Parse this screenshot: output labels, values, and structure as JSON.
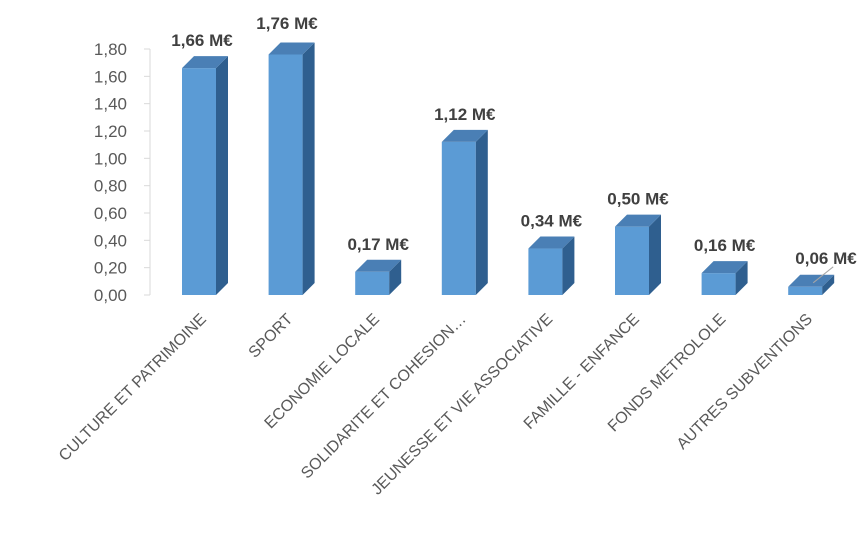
{
  "chart_data": {
    "type": "bar",
    "style": "3d-column",
    "categories": [
      "CULTURE ET PATRIMOINE",
      "SPORT",
      "ECONOMIE LOCALE",
      "SOLIDARITE ET COHESION…",
      "JEUNESSE ET VIE ASSOCIATIVE",
      "FAMILLE - ENFANCE",
      "FONDS METROLOLE",
      "AUTRES SUBVENTIONS"
    ],
    "values": [
      1.66,
      1.76,
      0.17,
      1.12,
      0.34,
      0.5,
      0.16,
      0.06
    ],
    "data_labels": [
      "1,66 M€",
      "1,76 M€",
      "0,17 M€",
      "1,12 M€",
      "0,34 M€",
      "0,50 M€",
      "0,16 M€",
      "0,06 M€"
    ],
    "y_ticks": [
      "0,00",
      "0,20",
      "0,40",
      "0,60",
      "0,80",
      "1,00",
      "1,20",
      "1,40",
      "1,60",
      "1,80"
    ],
    "ylim": [
      0,
      1.8
    ],
    "grid": false,
    "legend": "none",
    "colors": {
      "bar_front": "#5B9BD5",
      "bar_side": "#2F5F8F",
      "bar_top": "#4A7FB5",
      "axis": "#D9D9D9"
    }
  }
}
